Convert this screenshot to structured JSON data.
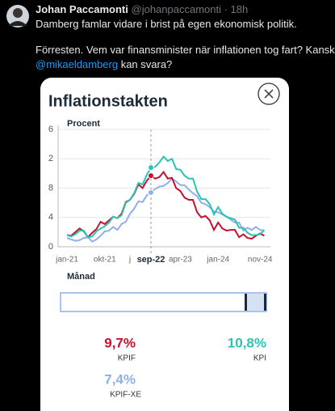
{
  "tweet": {
    "author": "Johan Paccamonti",
    "handle_time": "@johanpaccamonti · 18h",
    "line1": "Damberg famlar vidare i brist på egen ekonomisk politik.",
    "line2": "Förresten. Vem var finansminister när inflationen tog fart? Kanske",
    "mention": "@mikaeldamberg",
    "line3_rest": " kan svara?"
  },
  "chart_data": {
    "type": "line",
    "title": "Inflationstakten",
    "y_label": "Procent",
    "x_label": "Månad",
    "categories": [
      "jan-21",
      null,
      null,
      null,
      null,
      null,
      null,
      null,
      null,
      "okt-21",
      null,
      null,
      null,
      null,
      null,
      "j",
      null,
      null,
      null,
      null,
      "sep-22",
      null,
      null,
      null,
      null,
      null,
      null,
      "apr-23",
      null,
      null,
      null,
      null,
      null,
      null,
      null,
      null,
      "jan-24",
      null,
      null,
      null,
      null,
      null,
      null,
      null,
      null,
      null,
      "nov-24",
      null
    ],
    "ylim": [
      0,
      16
    ],
    "yticks": [
      0,
      4,
      8,
      {
        "value": 12,
        "label": "2"
      },
      {
        "value": 16,
        "label": "6"
      }
    ],
    "grid": true,
    "series": [
      {
        "name": "KPIF",
        "color": "#c8102e",
        "values": [
          1.6,
          1.5,
          2.0,
          2.5,
          2.1,
          1.3,
          1.9,
          2.4,
          3.4,
          3.1,
          3.6,
          4.1,
          3.9,
          4.5,
          6.1,
          6.4,
          7.2,
          8.5,
          8.0,
          9.0,
          9.7,
          9.3,
          9.5,
          10.2,
          9.3,
          9.4,
          8.0,
          7.6,
          6.7,
          6.4,
          6.4,
          4.7,
          4.0,
          4.2,
          3.6,
          2.3,
          3.3,
          2.5,
          2.2,
          2.3,
          2.3,
          1.3,
          1.7,
          1.2,
          1.1,
          1.5,
          1.8,
          1.5
        ],
        "value_labels": [
          null,
          null,
          null,
          null,
          null,
          null,
          null,
          null,
          null,
          null,
          null,
          null,
          null,
          null,
          null,
          null,
          null,
          null,
          null,
          null,
          "9,7%",
          null,
          null,
          null,
          null,
          null,
          null,
          null,
          null,
          null,
          null,
          null,
          null,
          null,
          null,
          null,
          null,
          null,
          null,
          null,
          null,
          null,
          null,
          null,
          null,
          null,
          null,
          null
        ]
      },
      {
        "name": "KPI",
        "color": "#2bc4b4",
        "values": [
          1.6,
          1.4,
          1.7,
          2.2,
          2.2,
          1.3,
          1.4,
          2.1,
          2.5,
          2.8,
          3.3,
          4.1,
          3.9,
          4.3,
          6.0,
          6.4,
          7.3,
          8.7,
          8.5,
          9.8,
          10.8,
          10.9,
          11.5,
          12.3,
          11.7,
          12.0,
          10.6,
          10.5,
          9.7,
          9.3,
          9.3,
          7.5,
          6.5,
          6.5,
          5.8,
          4.4,
          5.4,
          4.5,
          4.1,
          3.9,
          3.7,
          2.6,
          2.6,
          1.9,
          1.6,
          1.6,
          1.7,
          2.3
        ],
        "value_labels": [
          null,
          null,
          null,
          null,
          null,
          null,
          null,
          null,
          null,
          null,
          null,
          null,
          null,
          null,
          null,
          null,
          null,
          null,
          null,
          null,
          "10,8%",
          null,
          null,
          null,
          null,
          null,
          null,
          null,
          null,
          null,
          null,
          null,
          null,
          null,
          null,
          null,
          null,
          null,
          null,
          null,
          null,
          null,
          null,
          null,
          null,
          null,
          null,
          null
        ]
      },
      {
        "name": "KPIF-XE",
        "color": "#8fb0e8",
        "values": [
          1.2,
          1.0,
          0.8,
          0.9,
          1.2,
          1.3,
          0.7,
          1.0,
          1.5,
          2.1,
          2.2,
          2.7,
          2.3,
          3.1,
          3.4,
          4.5,
          5.2,
          6.2,
          6.1,
          7.0,
          7.4,
          7.9,
          8.2,
          8.3,
          8.7,
          9.3,
          8.9,
          8.4,
          8.4,
          7.8,
          7.3,
          6.9,
          6.0,
          5.8,
          5.4,
          4.8,
          4.7,
          4.4,
          4.1,
          3.7,
          3.3,
          3.3,
          2.2,
          2.6,
          2.3,
          2.7,
          2.3,
          2.2
        ],
        "value_labels": [
          null,
          null,
          null,
          null,
          null,
          null,
          null,
          null,
          null,
          null,
          null,
          null,
          null,
          null,
          null,
          null,
          null,
          null,
          null,
          null,
          "7,4%",
          null,
          null,
          null,
          null,
          null,
          null,
          null,
          null,
          null,
          null,
          null,
          null,
          null,
          null,
          null,
          null,
          null,
          null,
          null,
          null,
          null,
          null,
          null,
          null,
          null,
          null,
          null
        ]
      }
    ]
  }
}
